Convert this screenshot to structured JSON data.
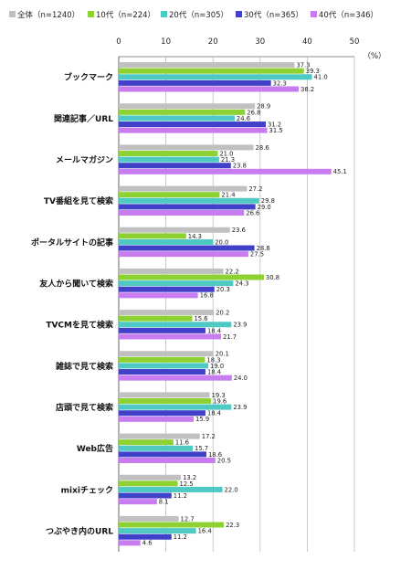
{
  "chart_data": {
    "type": "bar",
    "orientation": "horizontal",
    "unit_label": "（%）",
    "xlim": [
      0,
      50
    ],
    "ticks": [
      0,
      10,
      20,
      30,
      40,
      50
    ],
    "grid": true,
    "legend_position": "top",
    "categories": [
      "ブックマーク",
      "関連記事／URL",
      "メールマガジン",
      "TV番組を見て検索",
      "ポータルサイトの記事",
      "友人から聞いて検索",
      "TVCMを見て検索",
      "雑誌で見て検索",
      "店頭で見て検索",
      "Web広告",
      "mixiチェック",
      "つぶやき内のURL"
    ],
    "series": [
      {
        "name": "全体（n=1240）",
        "color": "#c0c0c0",
        "values": [
          37.3,
          28.9,
          28.6,
          27.2,
          23.6,
          22.2,
          20.2,
          20.1,
          19.3,
          17.2,
          13.2,
          12.7
        ]
      },
      {
        "name": "10代（n=224）",
        "color": "#8dd132",
        "values": [
          39.3,
          26.8,
          21.0,
          21.4,
          14.3,
          30.8,
          15.6,
          18.3,
          19.6,
          11.6,
          12.5,
          22.3
        ]
      },
      {
        "name": "20代（n=305）",
        "color": "#4ec9c4",
        "values": [
          41.0,
          24.6,
          21.3,
          29.8,
          20.0,
          24.3,
          23.9,
          19.0,
          23.9,
          15.7,
          22.0,
          16.4
        ]
      },
      {
        "name": "30代（n=365）",
        "color": "#4040c8",
        "values": [
          32.3,
          31.2,
          23.8,
          29.0,
          28.8,
          20.3,
          18.4,
          18.4,
          18.4,
          18.6,
          11.2,
          11.2
        ]
      },
      {
        "name": "40代（n=346）",
        "color": "#c77cf0",
        "values": [
          38.2,
          31.5,
          45.1,
          26.6,
          27.5,
          16.8,
          21.7,
          24.0,
          15.9,
          20.5,
          8.1,
          4.6
        ]
      }
    ]
  }
}
